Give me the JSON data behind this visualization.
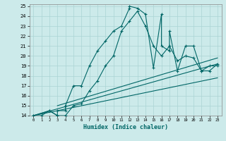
{
  "xlabel": "Humidex (Indice chaleur)",
  "background_color": "#cceaea",
  "grid_color": "#aad4d4",
  "line_color": "#006666",
  "xlim": [
    -0.5,
    23.5
  ],
  "ylim": [
    14,
    25.2
  ],
  "xticks": [
    0,
    1,
    2,
    3,
    4,
    5,
    6,
    7,
    8,
    9,
    10,
    11,
    12,
    13,
    14,
    15,
    16,
    17,
    18,
    19,
    20,
    21,
    22,
    23
  ],
  "yticks": [
    14,
    15,
    16,
    17,
    18,
    19,
    20,
    21,
    22,
    23,
    24,
    25
  ],
  "curve1_x": [
    0,
    1,
    2,
    3,
    3,
    4,
    4,
    5,
    6,
    7,
    8,
    9,
    10,
    11,
    12,
    12,
    13,
    14,
    15,
    16,
    16,
    17,
    17,
    18,
    19,
    20,
    21,
    22,
    23
  ],
  "curve1_y": [
    14,
    14,
    14.5,
    14,
    14.5,
    14.5,
    15,
    17,
    17,
    19,
    20.5,
    21.5,
    22.5,
    23,
    24.8,
    25,
    24.8,
    24.2,
    18.8,
    24.2,
    21,
    20.5,
    22.5,
    18.5,
    21,
    21,
    18.5,
    19,
    19
  ],
  "curve2_x": [
    0,
    2,
    3,
    4,
    5,
    6,
    7,
    8,
    9,
    10,
    11,
    12,
    13,
    14,
    15,
    16,
    17,
    18,
    19,
    20,
    21,
    22,
    23
  ],
  "curve2_y": [
    14,
    14.5,
    14,
    14,
    15,
    15.2,
    16.5,
    17.5,
    19,
    20,
    22.5,
    23.5,
    24.5,
    23,
    21,
    20,
    21,
    19.5,
    20,
    19.8,
    18.5,
    18.5,
    19.2
  ],
  "line1_x": [
    0,
    23
  ],
  "line1_y": [
    14,
    17.8
  ],
  "line2_x": [
    0,
    23
  ],
  "line2_y": [
    14,
    19.2
  ],
  "line3_x": [
    3,
    23
  ],
  "line3_y": [
    15,
    19.8
  ]
}
